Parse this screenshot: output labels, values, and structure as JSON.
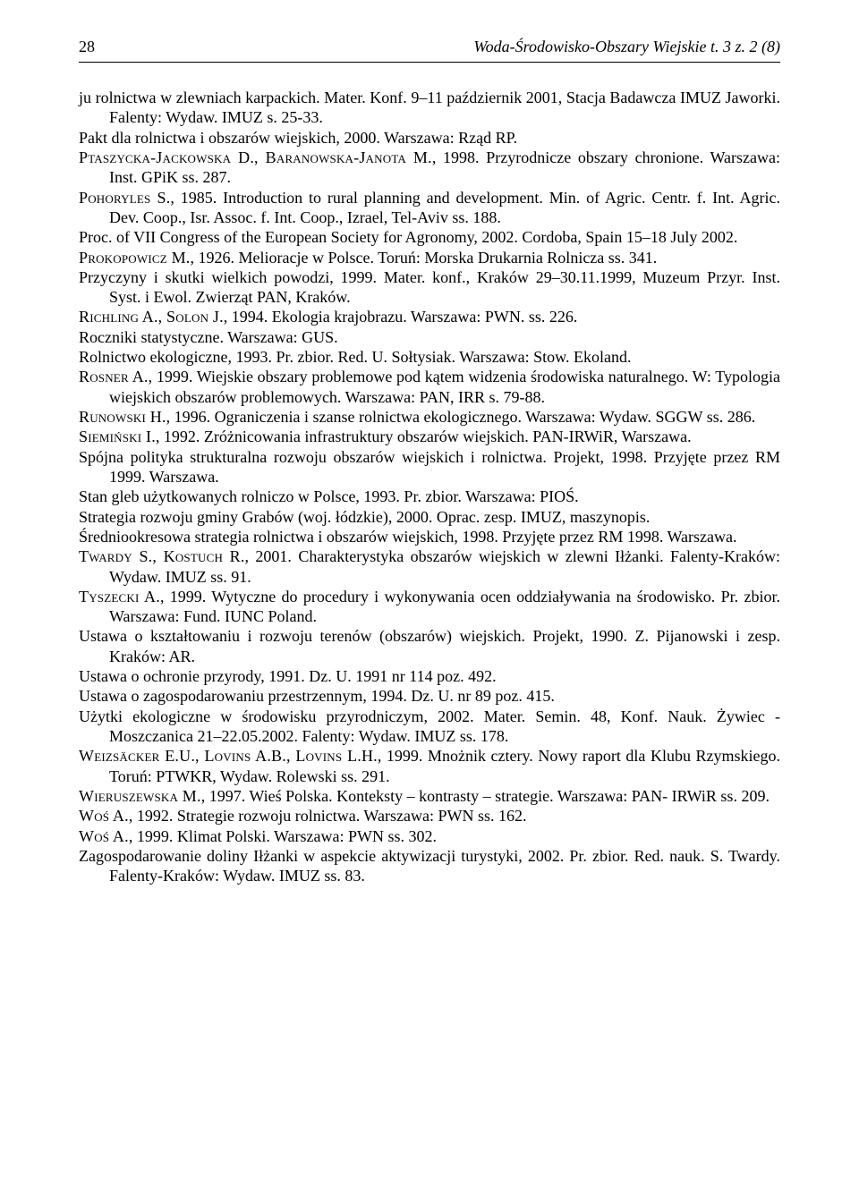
{
  "header": {
    "page_number": "28",
    "journal": "Woda-Środowisko-Obszary Wiejskie t. 3 z. 2 (8)"
  },
  "refs": {
    "r01": "ju rolnictwa w zlewniach karpackich. Mater. Konf. 9–11 październik 2001, Stacja Badawcza IMUZ Jaworki. Falenty: Wydaw. IMUZ s. 25-33.",
    "r02": "Pakt dla rolnictwa i obszarów wiejskich, 2000. Warszawa: Rząd RP.",
    "r03a": "Ptaszycka-Jackowska D., Baranowska-Janota M.",
    "r03b": ", 1998. Przyrodnicze obszary chronione. Warszawa: Inst. GPiK ss. 287.",
    "r04a": "Pohoryles S.",
    "r04b": ", 1985. Introduction to rural planning and development. Min. of Agric. Centr. f. Int. Agric. Dev. Coop., Isr. Assoc. f. Int. Coop., Izrael, Tel-Aviv ss. 188.",
    "r05": "Proc. of VII Congress of the European Society for Agronomy, 2002. Cordoba, Spain 15–18 July 2002.",
    "r06a": "Prokopowicz M.",
    "r06b": ", 1926. Melioracje w Polsce. Toruń: Morska Drukarnia Rolnicza ss. 341.",
    "r07": "Przyczyny i skutki wielkich powodzi, 1999. Mater. konf., Kraków 29–30.11.1999, Muzeum Przyr. Inst. Syst. i Ewol. Zwierząt PAN, Kraków.",
    "r08a": "Richling A., Solon J.",
    "r08b": ", 1994. Ekologia krajobrazu. Warszawa: PWN. ss. 226.",
    "r09": "Roczniki statystyczne. Warszawa: GUS.",
    "r10": "Rolnictwo ekologiczne, 1993. Pr. zbior. Red. U. Sołtysiak. Warszawa: Stow. Ekoland.",
    "r11a": "Rosner A.",
    "r11b": ", 1999. Wiejskie obszary problemowe pod kątem widzenia środowiska naturalnego. W: Typologia wiejskich obszarów problemowych. Warszawa: PAN, IRR s. 79-88.",
    "r12a": "Runowski H.",
    "r12b": ", 1996. Ograniczenia i szanse rolnictwa ekologicznego. Warszawa: Wydaw. SGGW ss. 286.",
    "r13a": "Siemiński I.",
    "r13b": ", 1992. Zróżnicowania infrastruktury obszarów wiejskich. PAN-IRWiR, Warszawa.",
    "r14": "Spójna polityka strukturalna rozwoju obszarów wiejskich i rolnictwa. Projekt, 1998. Przyjęte przez RM 1999. Warszawa.",
    "r15": "Stan gleb użytkowanych rolniczo w Polsce, 1993. Pr. zbior. Warszawa: PIOŚ.",
    "r16": "Strategia rozwoju gminy Grabów (woj. łódzkie), 2000. Oprac. zesp. IMUZ, maszynopis.",
    "r17": "Średniookresowa strategia rolnictwa i obszarów wiejskich, 1998. Przyjęte przez RM 1998. Warszawa.",
    "r18a": "Twardy S., Kostuch R.",
    "r18b": ", 2001. Charakterystyka obszarów wiejskich w zlewni Iłżanki. Falenty-Kraków: Wydaw. IMUZ ss. 91.",
    "r19a": "Tyszecki A.",
    "r19b": ", 1999. Wytyczne do procedury i wykonywania ocen oddziaływania na środowisko. Pr. zbior. Warszawa: Fund. IUNC Poland.",
    "r20": "Ustawa o kształtowaniu i rozwoju terenów (obszarów) wiejskich. Projekt, 1990. Z. Pijanowski i zesp. Kraków: AR.",
    "r21": "Ustawa o ochronie przyrody, 1991. Dz. U. 1991 nr 114 poz. 492.",
    "r22": "Ustawa o zagospodarowaniu przestrzennym, 1994. Dz. U. nr 89 poz. 415.",
    "r23": "Użytki ekologiczne w środowisku przyrodniczym, 2002. Mater. Semin. 48, Konf. Nauk. Żywiec - Moszczanica 21–22.05.2002. Falenty: Wydaw. IMUZ ss. 178.",
    "r24a": "Weizsäcker E.U., Lovins A.B., Lovins L.H.",
    "r24b": ", 1999. Mnożnik cztery. Nowy raport dla Klubu Rzymskiego. Toruń: PTWKR, Wydaw. Rolewski ss. 291.",
    "r25a": "Wieruszewska M.",
    "r25b": ", 1997. Wieś Polska. Konteksty – kontrasty – strategie. Warszawa: PAN- IRWiR ss. 209.",
    "r26a": "Woś A.",
    "r26b": ", 1992. Strategie rozwoju rolnictwa. Warszawa: PWN ss. 162.",
    "r27a": "Woś A.",
    "r27b": ", 1999. Klimat Polski. Warszawa: PWN ss. 302.",
    "r28": "Zagospodarowanie doliny Iłżanki w aspekcie aktywizacji turystyki, 2002. Pr. zbior. Red. nauk. S. Twardy. Falenty-Kraków: Wydaw. IMUZ ss. 83."
  }
}
